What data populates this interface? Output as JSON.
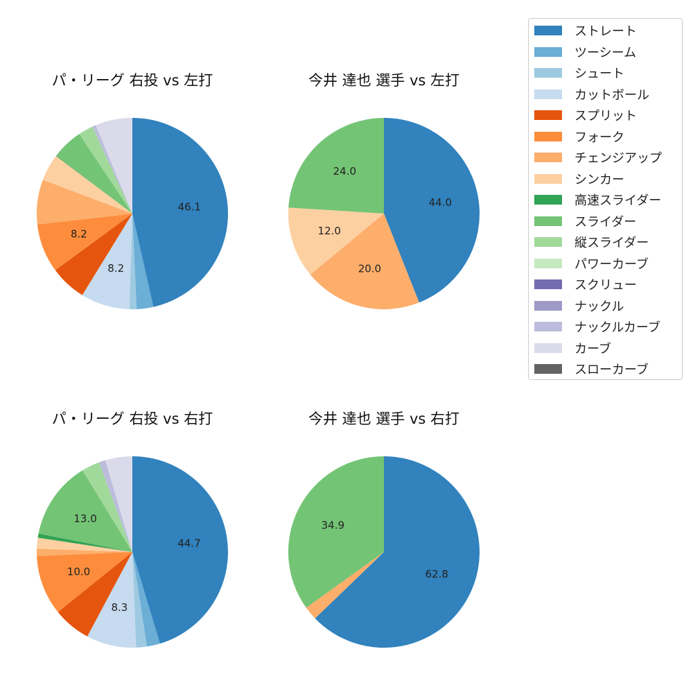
{
  "chart_data": [
    {
      "type": "pie",
      "title": "パ・リーグ 右投 vs 左打",
      "categories": [
        "ストレート",
        "ツーシーム",
        "シュート",
        "カットボール",
        "スプリット",
        "フォーク",
        "チェンジアップ",
        "シンカー",
        "高速スライダー",
        "スライダー",
        "縦スライダー",
        "パワーカーブ",
        "スクリュー",
        "ナックル",
        "ナックルカーブ",
        "カーブ",
        "スローカーブ"
      ],
      "values": [
        46.1,
        2.8,
        1.2,
        8.2,
        6.1,
        8.2,
        7.5,
        4.5,
        0.1,
        5.2,
        2.5,
        0.0,
        0.0,
        0.0,
        0.6,
        6.2,
        0.0
      ],
      "data_labels": [
        "46.1",
        "",
        "",
        "8.2",
        "",
        "8.2",
        "",
        "",
        "",
        "",
        "",
        "",
        "",
        "",
        "",
        "",
        ""
      ]
    },
    {
      "type": "pie",
      "title": "今井 達也 選手 vs 左打",
      "categories": [
        "ストレート",
        "ツーシーム",
        "シュート",
        "カットボール",
        "スプリット",
        "フォーク",
        "チェンジアップ",
        "シンカー",
        "高速スライダー",
        "スライダー",
        "縦スライダー",
        "パワーカーブ",
        "スクリュー",
        "ナックル",
        "ナックルカーブ",
        "カーブ",
        "スローカーブ"
      ],
      "values": [
        44.0,
        0,
        0,
        0,
        0,
        0,
        20.0,
        12.0,
        0,
        24.0,
        0,
        0,
        0,
        0,
        0,
        0,
        0
      ],
      "data_labels": [
        "44.0",
        "",
        "",
        "",
        "",
        "",
        "20.0",
        "12.0",
        "",
        "24.0",
        "",
        "",
        "",
        "",
        "",
        "",
        ""
      ]
    },
    {
      "type": "pie",
      "title": "パ・リーグ 右投 vs 右打",
      "categories": [
        "ストレート",
        "ツーシーム",
        "シュート",
        "カットボール",
        "スプリット",
        "フォーク",
        "チェンジアップ",
        "シンカー",
        "高速スライダー",
        "スライダー",
        "縦スライダー",
        "パワーカーブ",
        "スクリュー",
        "ナックル",
        "ナックルカーブ",
        "カーブ",
        "スローカーブ"
      ],
      "values": [
        44.7,
        2.2,
        1.8,
        8.3,
        6.3,
        10.0,
        1.2,
        1.8,
        0.7,
        13.0,
        3.0,
        0.0,
        0.0,
        0.0,
        1.1,
        4.5,
        0.0
      ],
      "data_labels": [
        "44.7",
        "",
        "",
        "8.3",
        "",
        "10.0",
        "",
        "",
        "",
        "13.0",
        "",
        "",
        "",
        "",
        "",
        "",
        ""
      ]
    },
    {
      "type": "pie",
      "title": "今井 達也 選手 vs 右打",
      "categories": [
        "ストレート",
        "ツーシーム",
        "シュート",
        "カットボール",
        "スプリット",
        "フォーク",
        "チェンジアップ",
        "シンカー",
        "高速スライダー",
        "スライダー",
        "縦スライダー",
        "パワーカーブ",
        "スクリュー",
        "ナックル",
        "ナックルカーブ",
        "カーブ",
        "スローカーブ"
      ],
      "values": [
        62.8,
        0,
        0,
        0,
        0,
        0,
        2.3,
        0,
        0,
        34.9,
        0,
        0,
        0,
        0,
        0,
        0,
        0
      ],
      "data_labels": [
        "62.8",
        "",
        "",
        "",
        "",
        "",
        "",
        "",
        "",
        "34.9",
        "",
        "",
        "",
        "",
        "",
        "",
        ""
      ]
    }
  ],
  "legend": {
    "placement": "top-right",
    "items": [
      {
        "label": "ストレート",
        "color": "#3182bd"
      },
      {
        "label": "ツーシーム",
        "color": "#6baed6"
      },
      {
        "label": "シュート",
        "color": "#9ecae1"
      },
      {
        "label": "カットボール",
        "color": "#c6dbef"
      },
      {
        "label": "スプリット",
        "color": "#e6550d"
      },
      {
        "label": "フォーク",
        "color": "#fd8d3c"
      },
      {
        "label": "チェンジアップ",
        "color": "#fdae6b"
      },
      {
        "label": "シンカー",
        "color": "#fdd0a2"
      },
      {
        "label": "高速スライダー",
        "color": "#31a354"
      },
      {
        "label": "スライダー",
        "color": "#74c476"
      },
      {
        "label": "縦スライダー",
        "color": "#a1d99b"
      },
      {
        "label": "パワーカーブ",
        "color": "#c7e9c0"
      },
      {
        "label": "スクリュー",
        "color": "#756bb1"
      },
      {
        "label": "ナックル",
        "color": "#9e9ac8"
      },
      {
        "label": "ナックルカーブ",
        "color": "#bcbddc"
      },
      {
        "label": "カーブ",
        "color": "#dadaeb"
      },
      {
        "label": "スローカーブ",
        "color": "#636363"
      }
    ]
  }
}
